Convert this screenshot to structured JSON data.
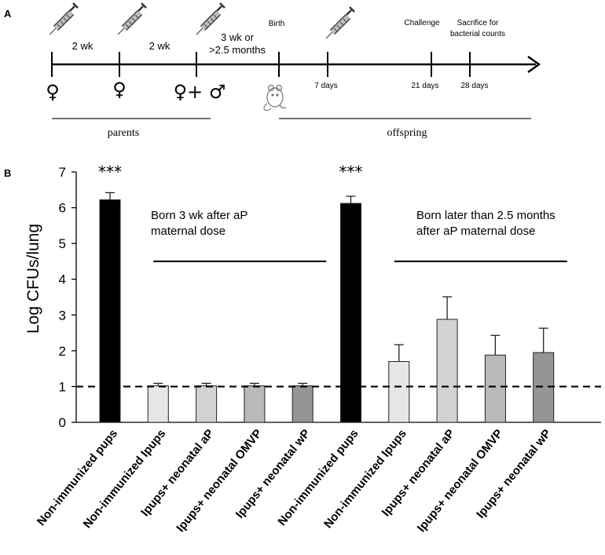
{
  "panel_a": {
    "letter": "A",
    "intervals": [
      "2 wk",
      "2 wk"
    ],
    "mating_interval": [
      "3 wk or",
      ">2.5 months"
    ],
    "events": {
      "birth": "Birth",
      "challenge": "Challenge",
      "sacrifice": [
        "Sacrifice for",
        "bacterial counts"
      ]
    },
    "days": [
      "7 days",
      "21 days",
      "28 days"
    ],
    "symbols": {
      "female": "♀",
      "female_male": "♀+ ♂"
    },
    "groups": {
      "parents": "parents",
      "offspring": "offspring"
    },
    "icons": [
      "syringe-icon",
      "mouse-pup-icon"
    ]
  },
  "chart_data": {
    "type": "bar",
    "panel_letter": "B",
    "ylabel": "Log CFUs/lung",
    "xlabel": "",
    "ylim": [
      0,
      7
    ],
    "yticks": [
      0,
      1,
      2,
      3,
      4,
      5,
      6,
      7
    ],
    "categories": [
      "Non-immunized pups",
      "Non-immunized Ipups",
      "Ipups+ neonatal aP",
      "Ipups+ neonatal OMVP",
      "Ipups+ neonatal wP",
      "Non-immunized pups",
      "Non-immunized Ipups",
      "Ipups+ neonatal aP",
      "Ipups+ neonatal OMVP",
      "Ipups+ neonatal wP"
    ],
    "values": [
      6.22,
      1.02,
      1.02,
      1.02,
      1.02,
      6.12,
      1.7,
      2.88,
      1.88,
      1.95
    ],
    "errors": [
      0.2,
      0.07,
      0.07,
      0.07,
      0.07,
      0.2,
      0.47,
      0.63,
      0.55,
      0.68
    ],
    "bar_colors": [
      "#000000",
      "#e6e6e6",
      "#d2d2d2",
      "#b9b9b9",
      "#959595",
      "#000000",
      "#e6e6e6",
      "#d2d2d2",
      "#b9b9b9",
      "#959595"
    ],
    "detection_limit": 1,
    "significance": [
      {
        "bar_index": 0,
        "label": "***"
      },
      {
        "bar_index": 5,
        "label": "***"
      }
    ],
    "group_annotations": [
      {
        "lines": [
          "Born 3 wk after aP",
          "maternal dose"
        ],
        "bar_range": [
          1,
          4
        ]
      },
      {
        "lines": [
          "Born later than 2.5 months",
          "after aP maternal dose"
        ],
        "bar_range": [
          6,
          9
        ]
      }
    ]
  }
}
